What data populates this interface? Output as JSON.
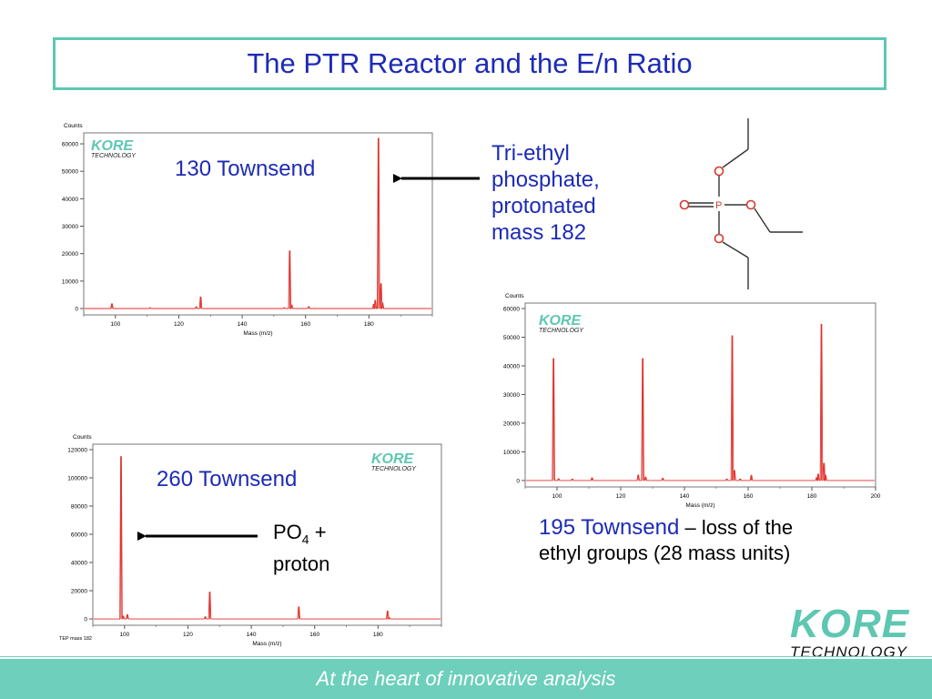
{
  "title": "The PTR Reactor and the E/n Ratio",
  "footer": "At the heart of innovative analysis",
  "logo": {
    "main": "KORE",
    "sub": "TECHNOLOGY"
  },
  "labels": {
    "t130": "130 Townsend",
    "t260": "260 Townsend",
    "t195": "195 Townsend",
    "caption195_rest1": " – loss of the",
    "caption195_rest2": "ethyl groups (28 mass units)",
    "tep_line1": "Tri-ethyl",
    "tep_line2": "phosphate,",
    "tep_line3": "protonated",
    "tep_line4": "mass 182",
    "po4_main": "PO",
    "po4_sub": "4",
    "po4_tail": " +",
    "po4_line2": "proton"
  },
  "molecule": {
    "p_label": "P"
  },
  "colors": {
    "accent": "#5ec7b1",
    "title_blue": "#1d2bb5",
    "spectrum_red": "#e0302a",
    "footer_bar": "#6dcfbc"
  },
  "chart_data": [
    {
      "id": "c130",
      "type": "line",
      "ylabel": "Counts",
      "xlabel": "Mass (m/z)",
      "xlim": [
        90,
        200
      ],
      "ylim": [
        0,
        62000
      ],
      "xticks": [
        100,
        120,
        140,
        160,
        180
      ],
      "yticks": [
        0,
        10000,
        20000,
        30000,
        40000,
        50000,
        60000
      ],
      "peaks": [
        {
          "x": 98.9,
          "y": 1700
        },
        {
          "x": 110.9,
          "y": 300
        },
        {
          "x": 125.5,
          "y": 600
        },
        {
          "x": 126.9,
          "y": 4200
        },
        {
          "x": 153.3,
          "y": 300
        },
        {
          "x": 155.0,
          "y": 21000
        },
        {
          "x": 155.6,
          "y": 1300
        },
        {
          "x": 161.0,
          "y": 700
        },
        {
          "x": 181.5,
          "y": 1500
        },
        {
          "x": 182.0,
          "y": 3000
        },
        {
          "x": 183.0,
          "y": 62000
        },
        {
          "x": 183.8,
          "y": 9000
        },
        {
          "x": 184.3,
          "y": 2000
        }
      ]
    },
    {
      "id": "c195",
      "type": "line",
      "ylabel": "Counts",
      "xlabel": "Mass (m/z)",
      "xlim": [
        90,
        200
      ],
      "ylim": [
        0,
        60000
      ],
      "xticks": [
        100,
        120,
        140,
        160,
        180,
        200
      ],
      "yticks": [
        0,
        10000,
        20000,
        30000,
        40000,
        50000,
        60000
      ],
      "peaks": [
        {
          "x": 98.9,
          "y": 42500
        },
        {
          "x": 100.5,
          "y": 600
        },
        {
          "x": 104.8,
          "y": 500
        },
        {
          "x": 111.0,
          "y": 900
        },
        {
          "x": 125.5,
          "y": 1900
        },
        {
          "x": 126.9,
          "y": 42500
        },
        {
          "x": 127.8,
          "y": 1200
        },
        {
          "x": 133.2,
          "y": 800
        },
        {
          "x": 153.3,
          "y": 500
        },
        {
          "x": 155.0,
          "y": 50500
        },
        {
          "x": 155.7,
          "y": 3500
        },
        {
          "x": 157.5,
          "y": 500
        },
        {
          "x": 161.0,
          "y": 1800
        },
        {
          "x": 181.5,
          "y": 1000
        },
        {
          "x": 182.0,
          "y": 2200
        },
        {
          "x": 183.0,
          "y": 54500
        },
        {
          "x": 183.8,
          "y": 6000
        },
        {
          "x": 184.3,
          "y": 1800
        }
      ]
    },
    {
      "id": "c260",
      "type": "line",
      "ylabel": "Counts",
      "xlabel": "Mass (m/z)",
      "footnote": "TEP mass 182",
      "xlim": [
        90,
        200
      ],
      "ylim": [
        0,
        120000
      ],
      "xticks": [
        100,
        120,
        140,
        160,
        180
      ],
      "yticks": [
        0,
        20000,
        40000,
        60000,
        80000,
        100000,
        120000
      ],
      "peaks": [
        {
          "x": 98.9,
          "y": 115000
        },
        {
          "x": 99.6,
          "y": 2000
        },
        {
          "x": 100.9,
          "y": 3000
        },
        {
          "x": 125.5,
          "y": 1500
        },
        {
          "x": 126.9,
          "y": 19000
        },
        {
          "x": 155.0,
          "y": 8500
        },
        {
          "x": 183.0,
          "y": 5500
        },
        {
          "x": 183.6,
          "y": 800
        }
      ]
    }
  ]
}
